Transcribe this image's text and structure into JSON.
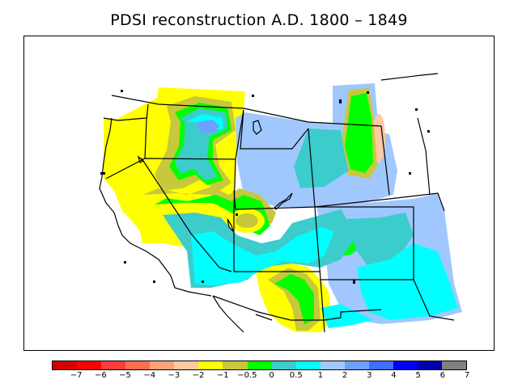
{
  "title": "PDSI reconstruction A.D. 1800 – 1849",
  "legend": {
    "colors": [
      "#d40000",
      "#ff0000",
      "#ff3c3c",
      "#ff6e4a",
      "#ffa07a",
      "#ffc8a0",
      "#ffff00",
      "#c8c83c",
      "#00ff00",
      "#3ccccc",
      "#00ffff",
      "#a0c8ff",
      "#6ea0ff",
      "#3c6eff",
      "#0000ff",
      "#0000aa",
      "#808080"
    ],
    "labels": [
      "−7",
      "−6",
      "−5",
      "−4",
      "−3",
      "−2",
      "−1",
      "−0.5",
      "0",
      "0.5",
      "1",
      "2",
      "3",
      "4",
      "5",
      "6",
      "7"
    ]
  },
  "map_colors": {
    "yellow": "#ffff00",
    "olive": "#c8c83c",
    "green": "#00ff00",
    "teal": "#3ccccc",
    "cyan": "#00ffff",
    "light_blue": "#a0c8ff",
    "blue": "#6ea0ff",
    "peach": "#ffc8a0"
  }
}
